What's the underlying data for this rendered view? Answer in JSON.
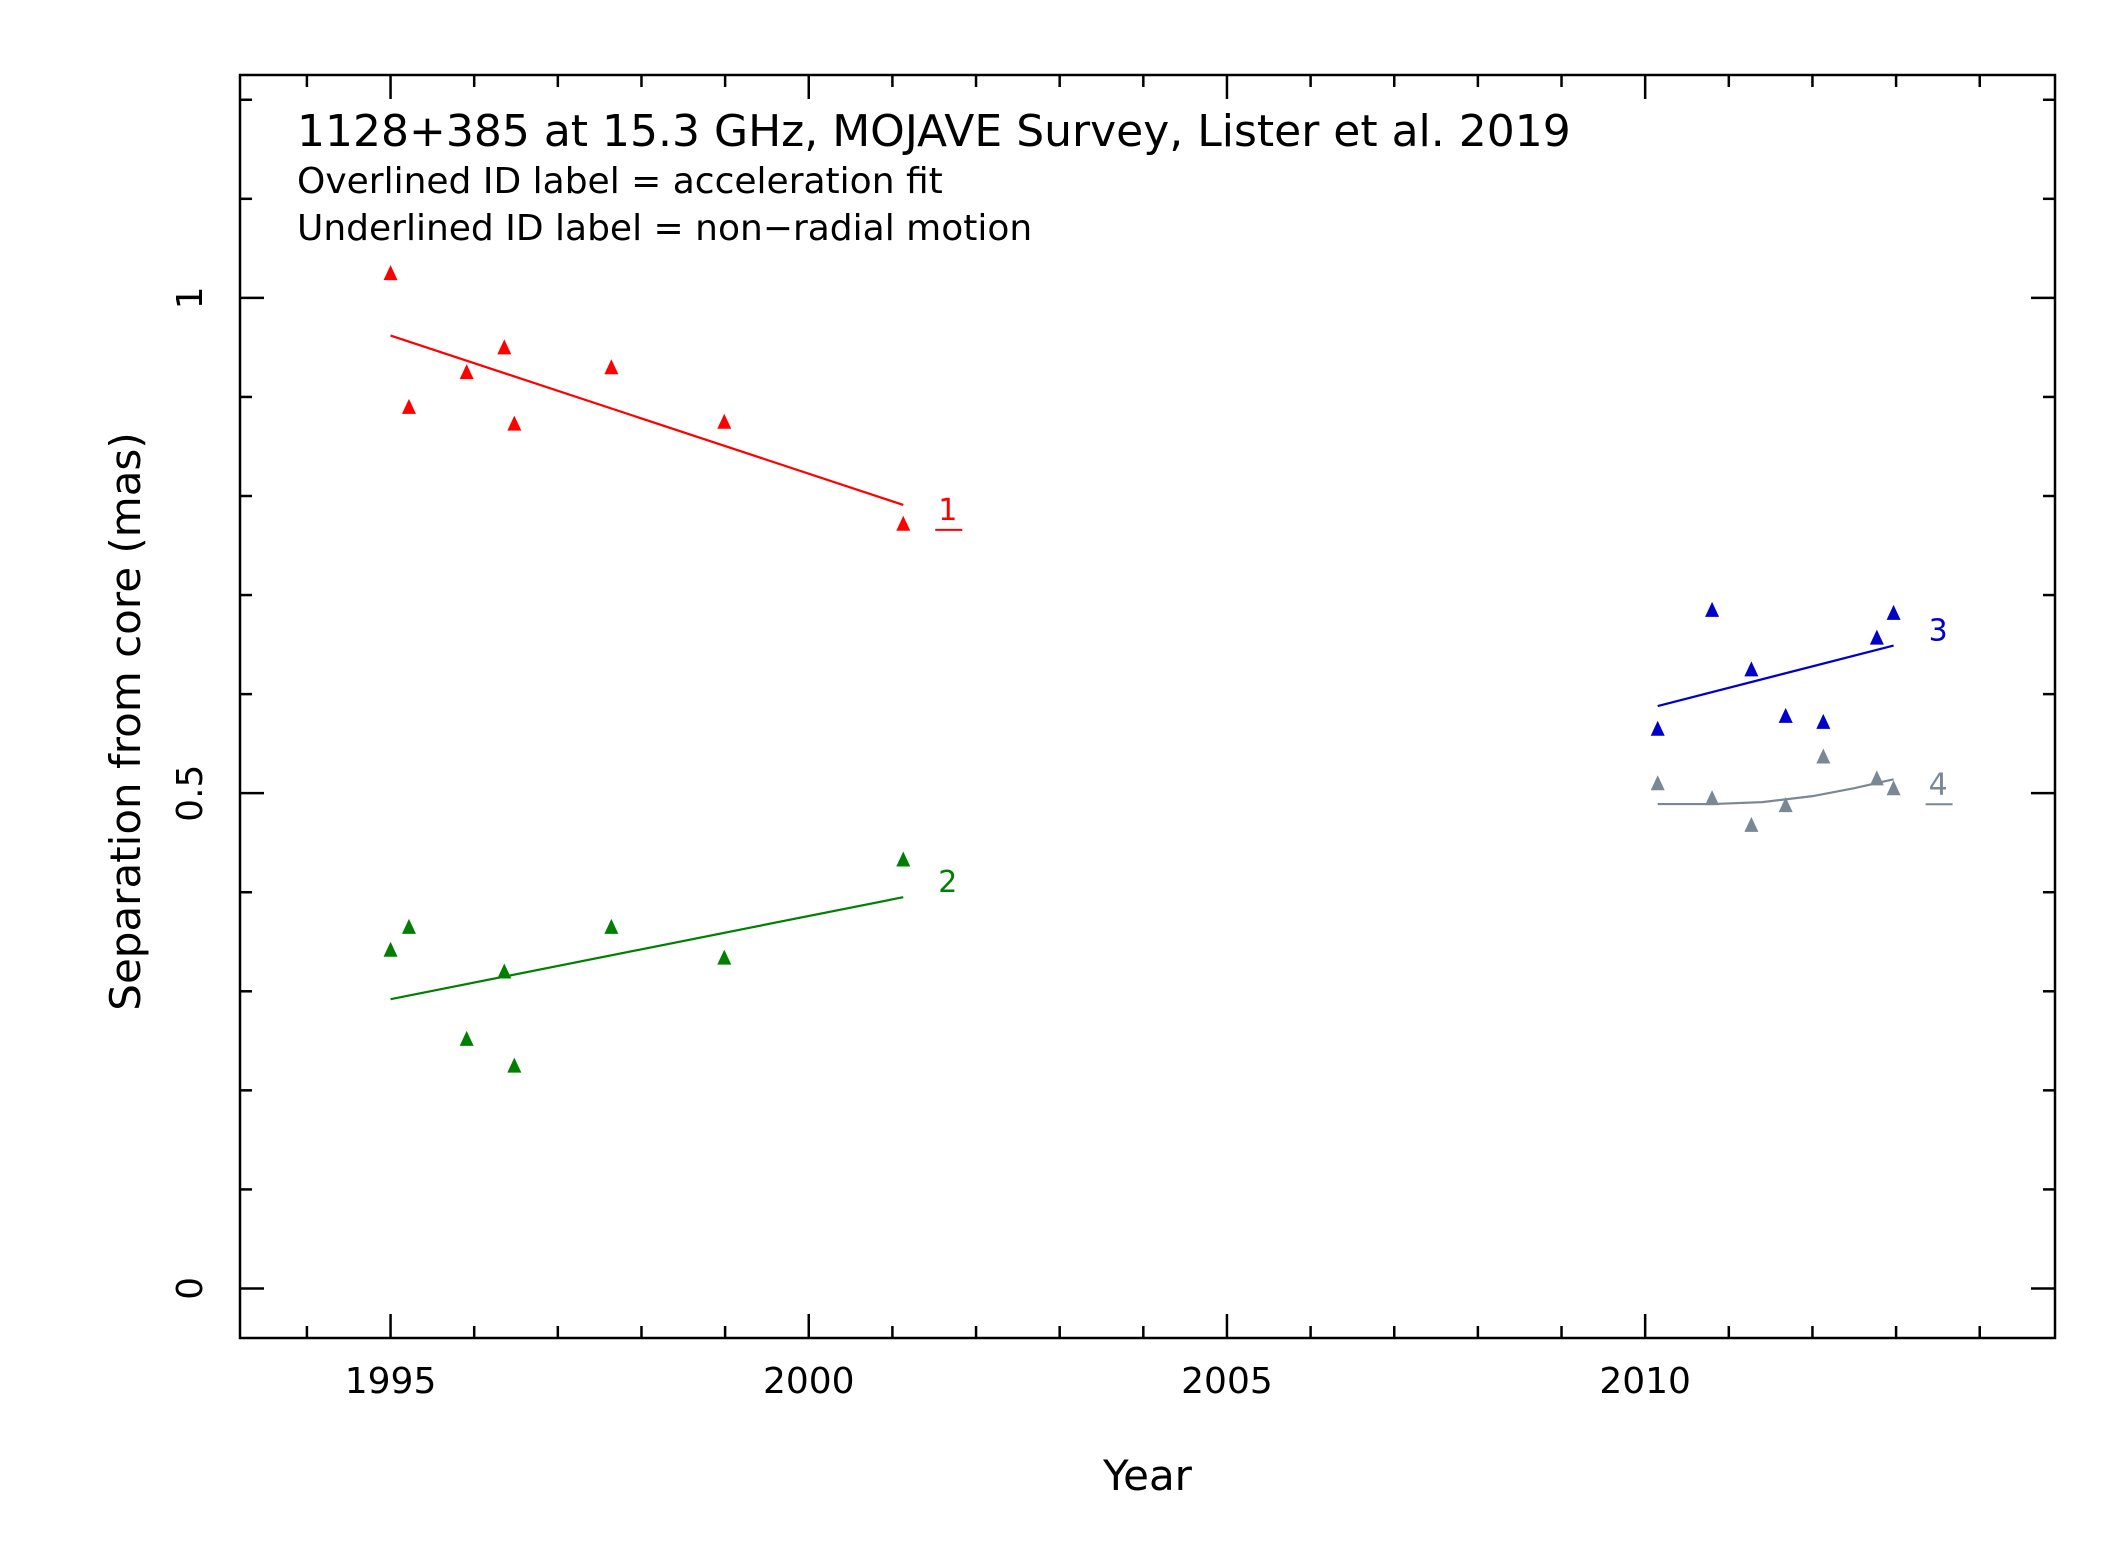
{
  "chart_data": {
    "type": "scatter",
    "title": "1128+385 at 15.3 GHz, MOJAVE Survey, Lister et al. 2019",
    "annotations": [
      "Overlined ID label = acceleration fit",
      "Underlined ID label = non−radial motion"
    ],
    "xlabel": "Year",
    "ylabel": "Separation from core (mas)",
    "xlim": [
      1993.2,
      2014.9
    ],
    "ylim": [
      -0.05,
      1.225
    ],
    "x_ticks": [
      1995,
      2000,
      2005,
      2010
    ],
    "x_tick_labels": [
      "1995",
      "2000",
      "2005",
      "2010"
    ],
    "y_ticks": [
      0,
      0.5,
      1
    ],
    "y_tick_labels": [
      "0",
      "0.5",
      "1"
    ],
    "grid": false,
    "series": [
      {
        "name": "1",
        "label_underlined": true,
        "color": "#ff0000",
        "x": [
          1995.0,
          1995.22,
          1995.91,
          1996.36,
          1996.48,
          1997.64,
          1998.99,
          2001.13
        ],
        "y": [
          1.025,
          0.89,
          0.925,
          0.95,
          0.873,
          0.93,
          0.875,
          0.772
        ],
        "fit": {
          "x": [
            1995.0,
            2001.13
          ],
          "y": [
            0.962,
            0.791
          ]
        }
      },
      {
        "name": "2",
        "label_underlined": false,
        "color": "#008000",
        "x": [
          1995.0,
          1995.22,
          1995.91,
          1996.36,
          1996.48,
          1997.64,
          1998.99,
          2001.13
        ],
        "y": [
          0.342,
          0.365,
          0.252,
          0.32,
          0.225,
          0.365,
          0.334,
          0.433
        ],
        "fit": {
          "x": [
            1995.0,
            2001.13
          ],
          "y": [
            0.292,
            0.395
          ]
        }
      },
      {
        "name": "3",
        "label_underlined": false,
        "color": "#0000c8",
        "x": [
          2010.15,
          2010.8,
          2011.27,
          2011.68,
          2012.13,
          2012.77,
          2012.97
        ],
        "y": [
          0.565,
          0.685,
          0.625,
          0.578,
          0.572,
          0.657,
          0.682
        ],
        "fit": {
          "x": [
            2010.15,
            2012.97
          ],
          "y": [
            0.588,
            0.649
          ]
        }
      },
      {
        "name": "4",
        "label_underlined": true,
        "color": "#7a8896",
        "x": [
          2010.15,
          2010.8,
          2011.27,
          2011.68,
          2012.13,
          2012.77,
          2012.97
        ],
        "y": [
          0.51,
          0.495,
          0.468,
          0.488,
          0.537,
          0.515,
          0.505
        ],
        "fit": {
          "x": [
            2010.15,
            2010.8,
            2011.4,
            2012.0,
            2012.5,
            2012.97
          ],
          "y": [
            0.489,
            0.489,
            0.491,
            0.497,
            0.505,
            0.514
          ]
        }
      }
    ]
  }
}
